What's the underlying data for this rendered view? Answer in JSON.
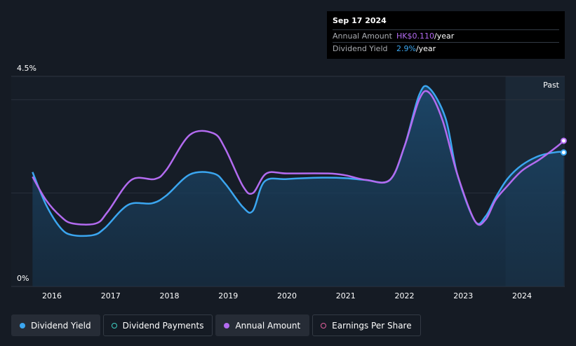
{
  "tooltip": {
    "date": "Sep 17 2024",
    "rows": [
      {
        "label": "Annual Amount",
        "value": "HK$0.110",
        "unit": "/year",
        "color": "#b36bf0"
      },
      {
        "label": "Dividend Yield",
        "value": "2.9%",
        "unit": "/year",
        "color": "#3ba6f0"
      }
    ]
  },
  "legend": [
    {
      "label": "Dividend Yield",
      "icon": "filled-dot",
      "color": "#3ba6f0",
      "active": true
    },
    {
      "label": "Dividend Payments",
      "icon": "ring-dot",
      "color": "#3fd1c4",
      "active": false
    },
    {
      "label": "Annual Amount",
      "icon": "filled-dot",
      "color": "#b36bf0",
      "active": true
    },
    {
      "label": "Earnings Per Share",
      "icon": "ring-dot",
      "color": "#e05f9c",
      "active": false
    }
  ],
  "chart_data": {
    "type": "line",
    "past_label": "Past",
    "past_start": 2023.72,
    "ylim": [
      0,
      4.5
    ],
    "y_ticks": [
      {
        "value": 4.5,
        "label": "4.5%"
      },
      {
        "value": 0,
        "label": "0%"
      }
    ],
    "gridlines": [
      4.0,
      2.0
    ],
    "xlim": [
      2015.6,
      2024.72
    ],
    "x_ticks": [
      2016,
      2017,
      2018,
      2019,
      2020,
      2021,
      2022,
      2023,
      2024
    ],
    "series": [
      {
        "name": "Dividend Yield",
        "color": "#3ba6f0",
        "fill": true,
        "points": [
          [
            2015.67,
            2.45
          ],
          [
            2015.9,
            1.75
          ],
          [
            2016.15,
            1.25
          ],
          [
            2016.35,
            1.1
          ],
          [
            2016.7,
            1.1
          ],
          [
            2016.9,
            1.25
          ],
          [
            2017.3,
            1.75
          ],
          [
            2017.7,
            1.78
          ],
          [
            2017.95,
            1.95
          ],
          [
            2018.35,
            2.4
          ],
          [
            2018.75,
            2.42
          ],
          [
            2018.95,
            2.2
          ],
          [
            2019.25,
            1.7
          ],
          [
            2019.42,
            1.62
          ],
          [
            2019.62,
            2.25
          ],
          [
            2020.0,
            2.3
          ],
          [
            2020.6,
            2.33
          ],
          [
            2021.0,
            2.32
          ],
          [
            2021.35,
            2.28
          ],
          [
            2021.75,
            2.28
          ],
          [
            2022.0,
            3.0
          ],
          [
            2022.25,
            4.1
          ],
          [
            2022.42,
            4.25
          ],
          [
            2022.7,
            3.6
          ],
          [
            2022.9,
            2.4
          ],
          [
            2023.2,
            1.4
          ],
          [
            2023.38,
            1.5
          ],
          [
            2023.55,
            1.9
          ],
          [
            2023.75,
            2.3
          ],
          [
            2024.0,
            2.6
          ],
          [
            2024.3,
            2.8
          ],
          [
            2024.6,
            2.88
          ],
          [
            2024.71,
            2.87
          ]
        ]
      },
      {
        "name": "Annual Amount",
        "color": "#b36bf0",
        "fill": false,
        "points": [
          [
            2015.67,
            2.35
          ],
          [
            2015.9,
            1.85
          ],
          [
            2016.15,
            1.5
          ],
          [
            2016.35,
            1.35
          ],
          [
            2016.75,
            1.35
          ],
          [
            2016.95,
            1.6
          ],
          [
            2017.35,
            2.28
          ],
          [
            2017.75,
            2.3
          ],
          [
            2017.95,
            2.5
          ],
          [
            2018.35,
            3.25
          ],
          [
            2018.75,
            3.28
          ],
          [
            2018.95,
            2.95
          ],
          [
            2019.25,
            2.15
          ],
          [
            2019.42,
            2.0
          ],
          [
            2019.65,
            2.42
          ],
          [
            2020.0,
            2.42
          ],
          [
            2020.7,
            2.42
          ],
          [
            2021.0,
            2.38
          ],
          [
            2021.35,
            2.28
          ],
          [
            2021.75,
            2.28
          ],
          [
            2022.0,
            3.0
          ],
          [
            2022.25,
            4.0
          ],
          [
            2022.42,
            4.15
          ],
          [
            2022.65,
            3.55
          ],
          [
            2022.9,
            2.4
          ],
          [
            2023.2,
            1.4
          ],
          [
            2023.38,
            1.43
          ],
          [
            2023.55,
            1.85
          ],
          [
            2023.75,
            2.15
          ],
          [
            2024.0,
            2.48
          ],
          [
            2024.3,
            2.72
          ],
          [
            2024.6,
            3.0
          ],
          [
            2024.71,
            3.12
          ]
        ]
      }
    ]
  }
}
